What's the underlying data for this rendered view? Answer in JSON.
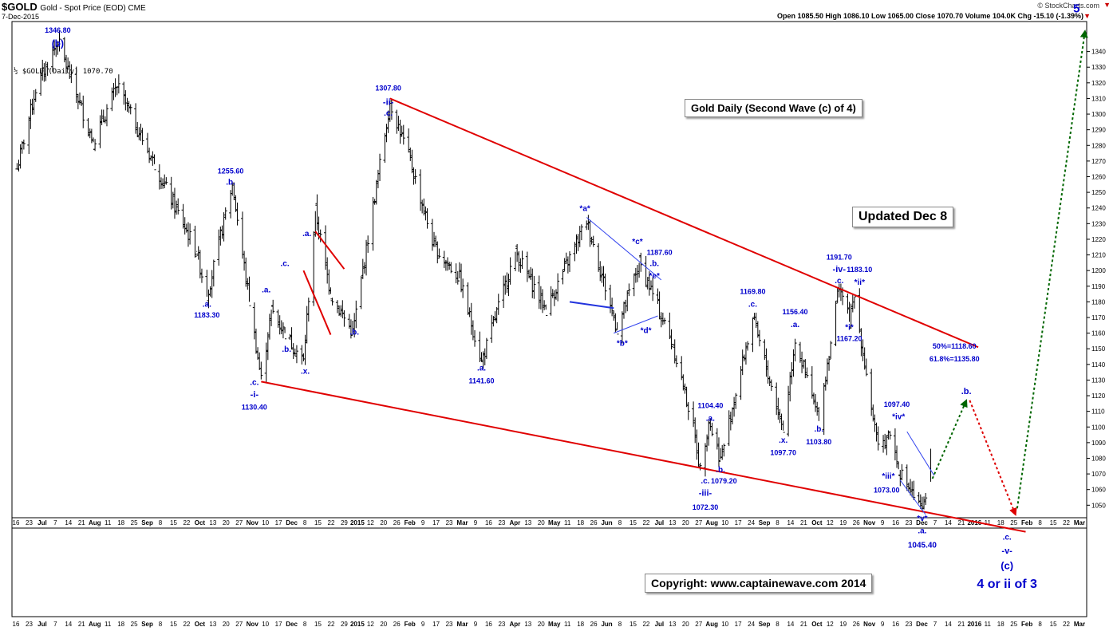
{
  "header": {
    "symbol": "$GOLD",
    "subtitle": "Gold - Spot Price (EOD)  CME",
    "date": "7-Dec-2015",
    "brand": "© StockCharts.com",
    "ohlc": "Open 1085.50  High 1086.10  Low 1065.00  Close 1070.70  Volume 104.0K  Chg -15.10 (-1.39%)",
    "chg_arrow": "▼",
    "legend": "½ $GOLD (Daily) 1070.70"
  },
  "boxes": {
    "title": "Gold Daily (Second Wave (c) of 4)",
    "updated": "Updated Dec 8",
    "copyright": "Copyright:    www.captainewave.com 2014"
  },
  "colors": {
    "price": "#000000",
    "trendline": "#e00000",
    "wave_label": "#0000cc",
    "thin_line": "#3344ee",
    "projection_up": "#006600",
    "projection_down": "#dd0000"
  },
  "chart_data": {
    "type": "ohlc",
    "title": "Gold Daily (Second Wave (c) of 4)",
    "xlabel": "",
    "ylabel": "",
    "ylim": [
      1042,
      1350
    ],
    "yticks": [
      1050,
      1060,
      1070,
      1080,
      1090,
      1100,
      1110,
      1120,
      1130,
      1140,
      1150,
      1160,
      1170,
      1180,
      1190,
      1200,
      1210,
      1220,
      1230,
      1240,
      1250,
      1260,
      1270,
      1280,
      1290,
      1300,
      1310,
      1320,
      1330,
      1340
    ],
    "grid": false,
    "date_range": [
      "2014-06-16",
      "2015-12-07"
    ],
    "x_tick_labels": [
      "16",
      "23",
      "Jul",
      "7",
      "14",
      "21",
      "Aug",
      "11",
      "18",
      "25",
      "Sep",
      "8",
      "15",
      "22",
      "Oct",
      "13",
      "20",
      "27",
      "Nov",
      "10",
      "17",
      "Dec",
      "8",
      "15",
      "22",
      "29",
      "2015",
      "12",
      "20",
      "26",
      "Feb",
      "9",
      "17",
      "23",
      "Mar",
      "9",
      "16",
      "23",
      "Apr",
      "13",
      "20",
      "May",
      "11",
      "18",
      "26",
      "Jun",
      "8",
      "15",
      "22",
      "Jul",
      "13",
      "20",
      "27",
      "Aug",
      "10",
      "17",
      "24",
      "Sep",
      "8",
      "14",
      "21",
      "Oct",
      "12",
      "19",
      "26",
      "Nov",
      "9",
      "16",
      "23",
      "Dec",
      "7",
      "14",
      "21",
      "2016",
      "11",
      "18",
      "25",
      "Feb",
      "8",
      "15",
      "22",
      "Mar"
    ],
    "series": [
      {
        "values": [
          {
            "x": "2014-06-16",
            "y": 1265
          },
          {
            "x": "2014-06-27",
            "y": 1316
          },
          {
            "x": "2014-07-10",
            "y": 1346.8
          },
          {
            "x": "2014-07-31",
            "y": 1282
          },
          {
            "x": "2014-08-14",
            "y": 1318
          },
          {
            "x": "2014-09-05",
            "y": 1268
          },
          {
            "x": "2014-09-30",
            "y": 1212
          },
          {
            "x": "2014-10-06",
            "y": 1183.3
          },
          {
            "x": "2014-10-21",
            "y": 1255.6
          },
          {
            "x": "2014-10-31",
            "y": 1180
          },
          {
            "x": "2014-11-07",
            "y": 1130.4
          },
          {
            "x": "2014-11-13",
            "y": 1175
          },
          {
            "x": "2014-11-21",
            "y": 1160
          },
          {
            "x": "2014-12-02",
            "y": 1142
          },
          {
            "x": "2014-12-09",
            "y": 1238
          },
          {
            "x": "2014-12-18",
            "y": 1185
          },
          {
            "x": "2014-12-31",
            "y": 1160
          },
          {
            "x": "2015-01-22",
            "y": 1307.8
          },
          {
            "x": "2015-02-03",
            "y": 1270
          },
          {
            "x": "2015-02-17",
            "y": 1215
          },
          {
            "x": "2015-03-04",
            "y": 1195
          },
          {
            "x": "2015-03-17",
            "y": 1141.6
          },
          {
            "x": "2015-04-06",
            "y": 1212
          },
          {
            "x": "2015-04-24",
            "y": 1175
          },
          {
            "x": "2015-05-18",
            "y": 1232
          },
          {
            "x": "2015-06-05",
            "y": 1162
          },
          {
            "x": "2015-06-18",
            "y": 1205
          },
          {
            "x": "2015-06-25",
            "y": 1187.6
          },
          {
            "x": "2015-07-08",
            "y": 1152
          },
          {
            "x": "2015-07-20",
            "y": 1100
          },
          {
            "x": "2015-07-24",
            "y": 1072.3
          },
          {
            "x": "2015-07-29",
            "y": 1104.4
          },
          {
            "x": "2015-08-05",
            "y": 1079.2
          },
          {
            "x": "2015-08-24",
            "y": 1169.8
          },
          {
            "x": "2015-09-11",
            "y": 1097.7
          },
          {
            "x": "2015-09-18",
            "y": 1156.4
          },
          {
            "x": "2015-10-02",
            "y": 1103.8
          },
          {
            "x": "2015-10-14",
            "y": 1191.7
          },
          {
            "x": "2015-10-20",
            "y": 1167.2
          },
          {
            "x": "2015-10-23",
            "y": 1183.1
          },
          {
            "x": "2015-11-06",
            "y": 1085
          },
          {
            "x": "2015-11-13",
            "y": 1097.4
          },
          {
            "x": "2015-11-18",
            "y": 1073.0
          },
          {
            "x": "2015-12-02",
            "y": 1045.4
          },
          {
            "x": "2015-12-07",
            "y": 1070.7
          }
        ]
      }
    ],
    "trendlines": [
      {
        "color": "#e00000",
        "from": {
          "x": "2015-01-22",
          "y": 1310
        },
        "to": {
          "x": "2016-01-04",
          "y": 1151
        }
      },
      {
        "color": "#e00000",
        "from": {
          "x": "2014-11-07",
          "y": 1129
        },
        "to": {
          "x": "2016-02-01",
          "y": 1033
        }
      },
      {
        "color": "#e00000",
        "from": {
          "x": "2014-12-09",
          "y": 1225
        },
        "to": {
          "x": "2014-12-26",
          "y": 1201
        }
      },
      {
        "color": "#e00000",
        "from": {
          "x": "2014-12-02",
          "y": 1200
        },
        "to": {
          "x": "2014-12-18",
          "y": 1159
        }
      }
    ],
    "channels": [
      {
        "color": "#3344ee",
        "from": {
          "x": "2015-05-18",
          "y": 1234
        },
        "to": {
          "x": "2015-07-01",
          "y": 1194
        }
      },
      {
        "color": "#3344ee",
        "from": {
          "x": "2015-06-03",
          "y": 1160
        },
        "to": {
          "x": "2015-06-29",
          "y": 1171
        }
      },
      {
        "color": "#3344ee",
        "from": {
          "x": "2015-11-23",
          "y": 1097
        },
        "to": {
          "x": "2015-12-09",
          "y": 1069
        }
      },
      {
        "color": "#3344ee",
        "from": {
          "x": "2015-11-19",
          "y": 1066
        },
        "to": {
          "x": "2015-12-04",
          "y": 1044
        }
      }
    ],
    "horizontal_segments": [
      {
        "color": "#2233dd",
        "from": {
          "x": "2015-05-08",
          "y": 1180
        },
        "to": {
          "x": "2015-06-03",
          "y": 1176
        }
      }
    ],
    "projections": [
      {
        "color": "#006600",
        "points": [
          {
            "x": "2015-12-08",
            "y": 1067
          },
          {
            "x": "2015-12-28",
            "y": 1117
          }
        ]
      },
      {
        "color": "#dd0000",
        "points": [
          {
            "x": "2015-12-30",
            "y": 1117
          },
          {
            "x": "2016-01-26",
            "y": 1044
          }
        ]
      },
      {
        "color": "#006600",
        "points": [
          {
            "x": "2016-01-27",
            "y": 1048
          },
          {
            "x": "2016-03-07",
            "y": 1353
          }
        ]
      }
    ],
    "annotations": [
      {
        "x": "2014-07-10",
        "y": 1352,
        "text": "1346.80",
        "size": 9
      },
      {
        "x": "2014-07-10",
        "y": 1343,
        "text": "(b)",
        "size": 12
      },
      {
        "x": "2015-01-21",
        "y": 1315,
        "text": "1307.80",
        "size": 9
      },
      {
        "x": "2015-01-21",
        "y": 1306,
        "text": "-ii-",
        "size": 11
      },
      {
        "x": "2015-01-21",
        "y": 1299,
        "text": ".c.",
        "size": 10
      },
      {
        "x": "2014-10-20",
        "y": 1262,
        "text": "1255.60",
        "size": 9
      },
      {
        "x": "2014-10-20",
        "y": 1255,
        "text": ".b.",
        "size": 10
      },
      {
        "x": "2014-10-06",
        "y": 1177,
        "text": ".a.",
        "size": 10
      },
      {
        "x": "2014-10-06",
        "y": 1170,
        "text": "1183.30",
        "size": 9
      },
      {
        "x": "2014-11-10",
        "y": 1186,
        "text": ".a.",
        "size": 10
      },
      {
        "x": "2014-11-21",
        "y": 1203,
        "text": ".c.",
        "size": 10
      },
      {
        "x": "2014-12-04",
        "y": 1222,
        "text": ".a.",
        "size": 10
      },
      {
        "x": "2014-11-22",
        "y": 1148,
        "text": ".b.",
        "size": 10
      },
      {
        "x": "2014-12-03",
        "y": 1134,
        "text": ".x.",
        "size": 10
      },
      {
        "x": "2014-11-03",
        "y": 1127,
        "text": ".c.",
        "size": 10
      },
      {
        "x": "2014-11-03",
        "y": 1119,
        "text": "-i-",
        "size": 11
      },
      {
        "x": "2014-11-03",
        "y": 1111,
        "text": "1130.40",
        "size": 9
      },
      {
        "x": "2015-01-01",
        "y": 1159,
        "text": ".b.",
        "size": 10
      },
      {
        "x": "2015-03-17",
        "y": 1136,
        "text": ".a.",
        "size": 10
      },
      {
        "x": "2015-03-17",
        "y": 1128,
        "text": "1141.60",
        "size": 9
      },
      {
        "x": "2015-05-17",
        "y": 1238,
        "text": "*a*",
        "size": 10
      },
      {
        "x": "2015-06-17",
        "y": 1217,
        "text": "*c*",
        "size": 10
      },
      {
        "x": "2015-06-30",
        "y": 1210,
        "text": "1187.60",
        "size": 9
      },
      {
        "x": "2015-06-27",
        "y": 1203,
        "text": ".b.",
        "size": 10
      },
      {
        "x": "2015-06-27",
        "y": 1195,
        "text": "*e*",
        "size": 10
      },
      {
        "x": "2015-06-22",
        "y": 1160,
        "text": "*d*",
        "size": 10
      },
      {
        "x": "2015-06-08",
        "y": 1152,
        "text": "*b*",
        "size": 10
      },
      {
        "x": "2015-07-30",
        "y": 1112,
        "text": "1104.40",
        "size": 9
      },
      {
        "x": "2015-07-30",
        "y": 1104,
        "text": ".a.",
        "size": 10
      },
      {
        "x": "2015-08-05",
        "y": 1071,
        "text": ".b.",
        "size": 10
      },
      {
        "x": "2015-08-07",
        "y": 1064,
        "text": "1079.20",
        "size": 9
      },
      {
        "x": "2015-07-27",
        "y": 1064,
        "text": ".c.",
        "size": 10
      },
      {
        "x": "2015-07-27",
        "y": 1056,
        "text": "-iii-",
        "size": 11
      },
      {
        "x": "2015-07-27",
        "y": 1047,
        "text": "1072.30",
        "size": 9
      },
      {
        "x": "2015-08-24",
        "y": 1185,
        "text": "1169.80",
        "size": 9
      },
      {
        "x": "2015-08-24",
        "y": 1177,
        "text": ".c.",
        "size": 10
      },
      {
        "x": "2015-09-18",
        "y": 1172,
        "text": "1156.40",
        "size": 9
      },
      {
        "x": "2015-09-18",
        "y": 1164,
        "text": ".a.",
        "size": 10
      },
      {
        "x": "2015-09-11",
        "y": 1090,
        "text": ".x.",
        "size": 10
      },
      {
        "x": "2015-09-11",
        "y": 1082,
        "text": "1097.70",
        "size": 9
      },
      {
        "x": "2015-10-02",
        "y": 1097,
        "text": ".b.",
        "size": 10
      },
      {
        "x": "2015-10-02",
        "y": 1089,
        "text": "1103.80",
        "size": 9
      },
      {
        "x": "2015-10-14",
        "y": 1207,
        "text": "1191.70",
        "size": 9
      },
      {
        "x": "2015-10-14",
        "y": 1199,
        "text": "-iv-",
        "size": 11
      },
      {
        "x": "2015-10-14",
        "y": 1192,
        "text": ".c.",
        "size": 10
      },
      {
        "x": "2015-10-26",
        "y": 1199,
        "text": "1183.10",
        "size": 9
      },
      {
        "x": "2015-10-26",
        "y": 1191,
        "text": "*ii*",
        "size": 10
      },
      {
        "x": "2015-10-20",
        "y": 1162,
        "text": "*i*",
        "size": 10
      },
      {
        "x": "2015-10-20",
        "y": 1155,
        "text": "1167.20",
        "size": 9
      },
      {
        "x": "2015-11-17",
        "y": 1113,
        "text": "1097.40",
        "size": 9
      },
      {
        "x": "2015-11-18",
        "y": 1105,
        "text": "*iv*",
        "size": 10
      },
      {
        "x": "2015-11-12",
        "y": 1067,
        "text": "*iii*",
        "size": 10
      },
      {
        "x": "2015-11-11",
        "y": 1058,
        "text": "1073.00",
        "size": 9
      },
      {
        "x": "2015-12-21",
        "y": 1150,
        "text": "50%=1118.60",
        "size": 9
      },
      {
        "x": "2015-12-21",
        "y": 1142,
        "text": "61.8%=1135.80",
        "size": 9
      },
      {
        "x": "2015-12-28",
        "y": 1121,
        "text": ".b.",
        "size": 11
      },
      {
        "x": "2015-12-02",
        "y": 1040,
        "text": "*v*",
        "size": 10
      },
      {
        "x": "2015-12-02",
        "y": 1032,
        "text": ".a.",
        "size": 10
      },
      {
        "x": "2015-12-02",
        "y": 1023,
        "text": "1045.40",
        "size": 10
      },
      {
        "x": "2016-01-21",
        "y": 1028,
        "text": ".c.",
        "size": 10
      },
      {
        "x": "2016-01-21",
        "y": 1019,
        "text": "-v-",
        "size": 11
      },
      {
        "x": "2016-01-21",
        "y": 1009,
        "text": "(c)",
        "size": 13
      },
      {
        "x": "2016-01-21",
        "y": 997,
        "text": "4 or ii of 3",
        "size": 16
      },
      {
        "x": "2016-03-02",
        "y": 1365,
        "text": "5",
        "size": 15
      }
    ]
  }
}
